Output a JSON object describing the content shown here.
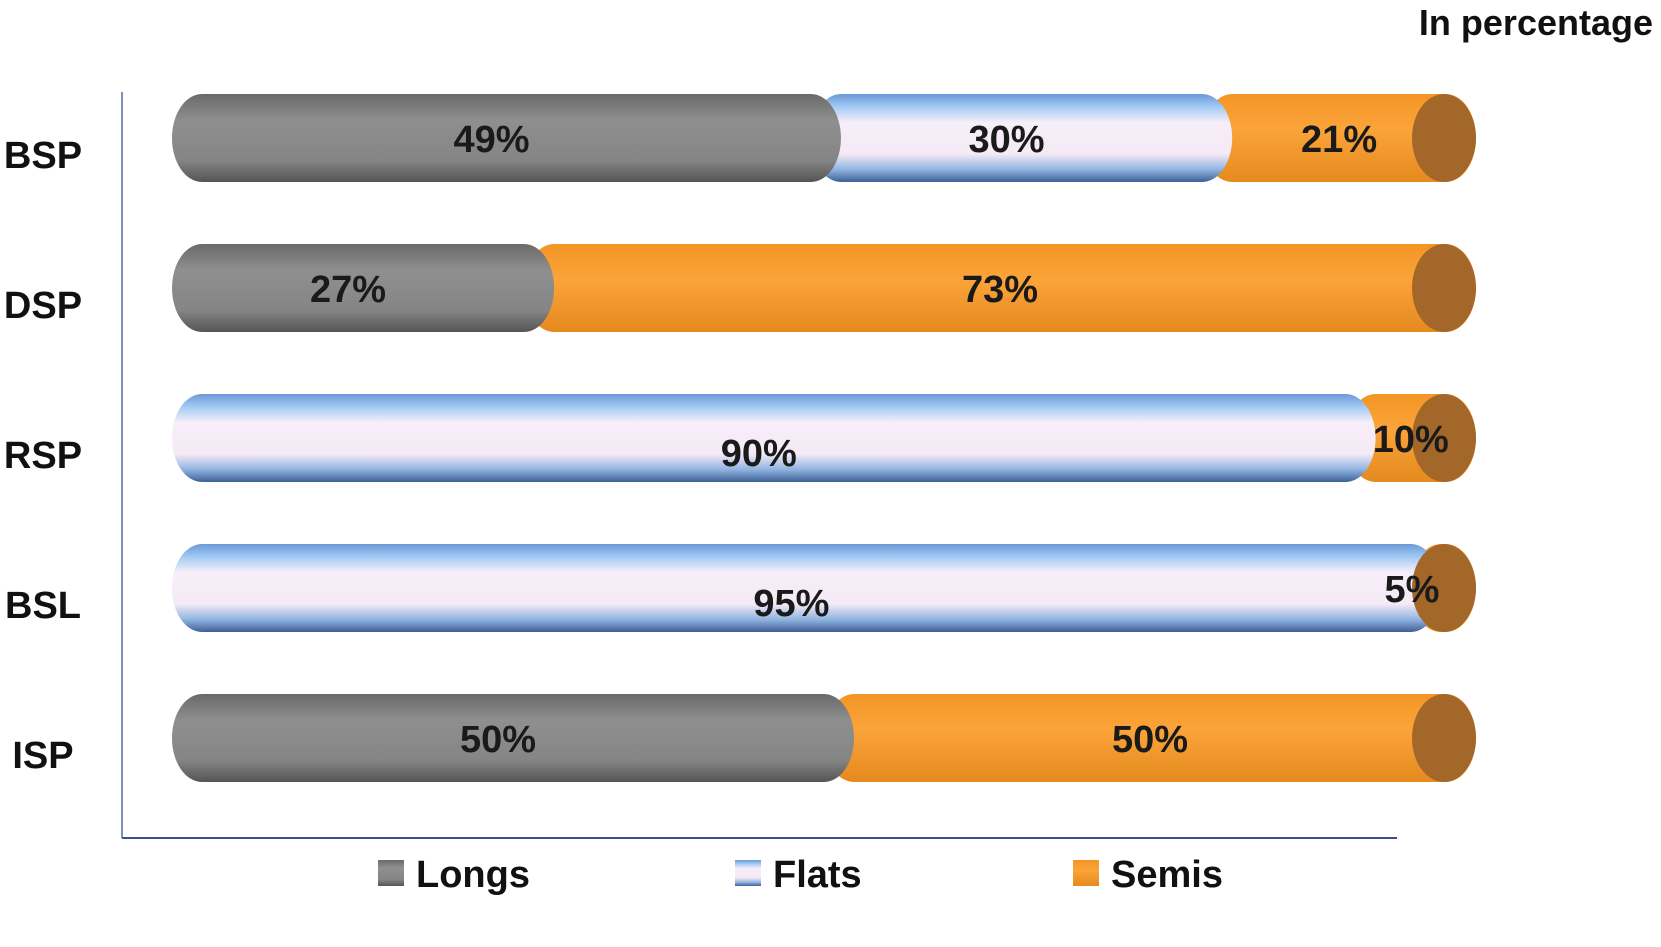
{
  "unit_note": "In percentage",
  "colors": {
    "Longs": "#8a8a8a",
    "Flats": "#9ec4ee",
    "Semis": "#f7a233",
    "axis": "#7f8fb5"
  },
  "chart_data": {
    "type": "bar",
    "orientation": "horizontal",
    "stacked": true,
    "percent": true,
    "categories": [
      "BSP",
      "DSP",
      "RSP",
      "BSL",
      "ISP"
    ],
    "series": [
      {
        "name": "Longs",
        "values": [
          49,
          27,
          0,
          0,
          50
        ],
        "labels": [
          "49%",
          "27%",
          "",
          "",
          "50%"
        ]
      },
      {
        "name": "Flats",
        "values": [
          30,
          0,
          90,
          95,
          0
        ],
        "labels": [
          "30%",
          "",
          "90%",
          "95%",
          ""
        ]
      },
      {
        "name": "Semis",
        "values": [
          21,
          73,
          10,
          5,
          50
        ],
        "labels": [
          "21%",
          "73%",
          "10%",
          "5%",
          "50%"
        ]
      }
    ],
    "xlim": [
      0,
      100
    ],
    "grid": false,
    "legend_position": "bottom"
  }
}
